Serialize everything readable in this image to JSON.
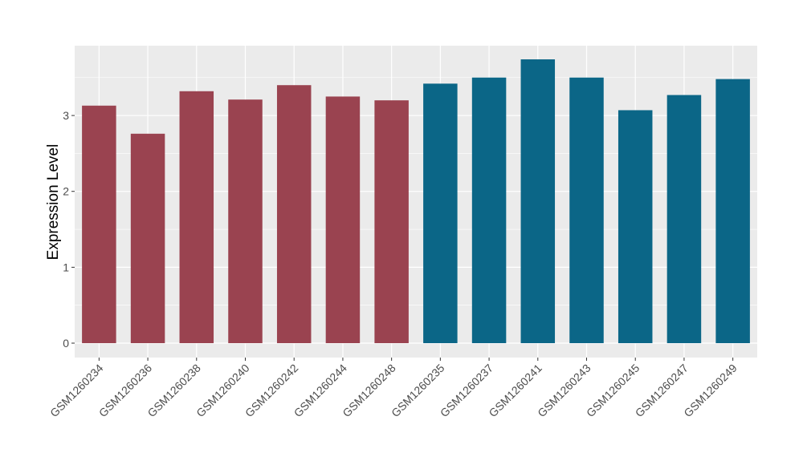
{
  "chart_data": {
    "type": "bar",
    "title": "",
    "xlabel": "",
    "ylabel": "Expression Level",
    "ylim": [
      -0.19,
      3.92
    ],
    "yticks": [
      0,
      1,
      2,
      3
    ],
    "grid": true,
    "legend": "none",
    "categories": [
      "GSM1260234",
      "GSM1260236",
      "GSM1260238",
      "GSM1260240",
      "GSM1260242",
      "GSM1260244",
      "GSM1260248",
      "GSM1260235",
      "GSM1260237",
      "GSM1260241",
      "GSM1260243",
      "GSM1260245",
      "GSM1260247",
      "GSM1260249"
    ],
    "values": [
      3.13,
      2.76,
      3.32,
      3.21,
      3.4,
      3.25,
      3.2,
      3.42,
      3.5,
      3.74,
      3.5,
      3.07,
      3.27,
      3.48
    ],
    "groups": [
      0,
      0,
      0,
      0,
      0,
      0,
      0,
      1,
      1,
      1,
      1,
      1,
      1,
      1
    ],
    "colors": [
      "#9A4350",
      "#0B6687"
    ],
    "panel_background": "#EBEBEB"
  }
}
